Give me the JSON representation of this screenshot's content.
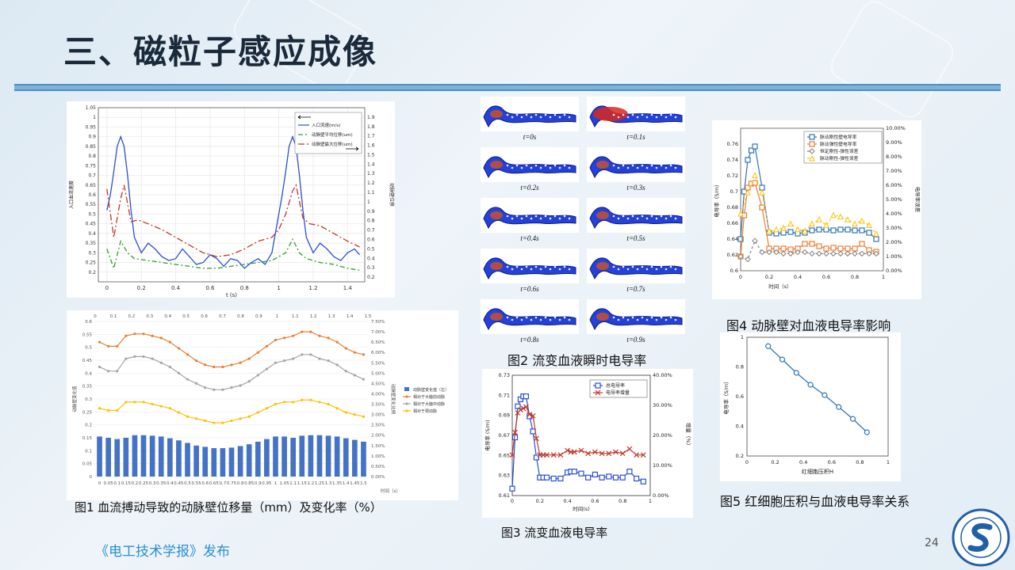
{
  "slide": {
    "title": "三、磁粒子感应成像",
    "source": "《电工技术学报》发布",
    "page_number": "24"
  },
  "figures": {
    "fig1_caption": "图1 血流搏动导致的动脉壁位移量（mm）及变化率（%）",
    "fig2_caption": "图2  流变血液瞬时电导率",
    "fig3_caption": "图3  流变血液电导率",
    "fig4_caption": "图4  动脉壁对血液电导率影响",
    "fig5_caption": "图5  红细胞压积与血液电导率关系",
    "fig2_time_labels": [
      "t=0s",
      "t=0.1s",
      "t=0.2s",
      "t=0.3s",
      "t=0.4s",
      "t=0.5s",
      "t=0.6s",
      "t=0.7s",
      "t=0.8s",
      "t=0.9s"
    ]
  },
  "colors": {
    "accent": "#2b8fcf",
    "rule": "#7fb2d8",
    "blue": "#2a4fd6",
    "red": "#c0392b",
    "green": "#2ca02c",
    "orange": "#ed7d31",
    "gray": "#a5a5a5",
    "yellow": "#ffc000",
    "bar": "#4472c4"
  },
  "chart_data": [
    {
      "id": "plot-a",
      "type": "line",
      "xlabel": "t (s)",
      "ylabel": "入口血流速度",
      "y2label": "动脉壁位移",
      "xlim": [
        -0.05,
        1.5
      ],
      "ylim": [
        0.15,
        1.05
      ],
      "y2lim": [
        0.15,
        2.0
      ],
      "xticks": [
        0,
        0.2,
        0.4,
        0.6,
        0.8,
        1,
        1.2,
        1.4
      ],
      "yticks": [
        0.2,
        0.25,
        0.3,
        0.35,
        0.4,
        0.45,
        0.5,
        0.55,
        0.6,
        0.65,
        0.7,
        0.75,
        0.8,
        0.85,
        0.9,
        0.95,
        1,
        1.05
      ],
      "y2ticks": [
        0.2,
        0.3,
        0.4,
        0.5,
        0.6,
        0.7,
        0.8,
        0.9,
        1,
        1.1,
        1.2,
        1.3,
        1.4,
        1.5,
        1.6,
        1.7,
        1.8,
        1.9
      ],
      "legend": "top-right",
      "series": [
        {
          "name": "入口流速(m/s)",
          "color": "#2a4fd6",
          "dash": "",
          "x": [
            0,
            0.02,
            0.04,
            0.06,
            0.08,
            0.1,
            0.12,
            0.14,
            0.16,
            0.2,
            0.24,
            0.28,
            0.32,
            0.36,
            0.4,
            0.44,
            0.48,
            0.52,
            0.56,
            0.6,
            0.64,
            0.68,
            0.72,
            0.76,
            0.8,
            0.84,
            0.88,
            0.92,
            0.96,
            1.0,
            1.02,
            1.04,
            1.06,
            1.08,
            1.1,
            1.12,
            1.14,
            1.16,
            1.2,
            1.24,
            1.28,
            1.32,
            1.36,
            1.4,
            1.44,
            1.47
          ],
          "y": [
            0.52,
            0.6,
            0.72,
            0.85,
            0.9,
            0.85,
            0.7,
            0.52,
            0.38,
            0.3,
            0.35,
            0.32,
            0.28,
            0.26,
            0.27,
            0.32,
            0.28,
            0.24,
            0.25,
            0.29,
            0.27,
            0.23,
            0.27,
            0.26,
            0.22,
            0.25,
            0.27,
            0.24,
            0.3,
            0.5,
            0.6,
            0.72,
            0.85,
            0.9,
            0.85,
            0.7,
            0.52,
            0.38,
            0.3,
            0.35,
            0.32,
            0.28,
            0.26,
            0.3,
            0.32,
            0.29
          ]
        },
        {
          "name": "动脉壁平均位移(um)",
          "color": "#2ca02c",
          "dash": "6,3,2,3",
          "x": [
            0,
            0.04,
            0.08,
            0.12,
            0.16,
            0.24,
            0.32,
            0.4,
            0.48,
            0.56,
            0.64,
            0.72,
            0.8,
            0.88,
            0.96,
            1.0,
            1.04,
            1.08,
            1.12,
            1.16,
            1.24,
            1.32,
            1.4,
            1.47
          ],
          "y": [
            0.32,
            0.22,
            0.36,
            0.3,
            0.27,
            0.26,
            0.25,
            0.24,
            0.23,
            0.22,
            0.22,
            0.23,
            0.24,
            0.25,
            0.26,
            0.28,
            0.3,
            0.37,
            0.3,
            0.27,
            0.25,
            0.24,
            0.22,
            0.21
          ]
        },
        {
          "name": "动脉壁最大位移(um)",
          "color": "#c0392b",
          "dash": "8,3,2,3",
          "x": [
            0,
            0.04,
            0.08,
            0.1,
            0.14,
            0.18,
            0.24,
            0.32,
            0.4,
            0.48,
            0.56,
            0.64,
            0.72,
            0.8,
            0.88,
            0.96,
            1.0,
            1.04,
            1.08,
            1.1,
            1.14,
            1.18,
            1.24,
            1.32,
            1.4,
            1.47
          ],
          "y": [
            0.63,
            0.38,
            0.58,
            0.65,
            0.46,
            0.47,
            0.45,
            0.42,
            0.38,
            0.34,
            0.3,
            0.28,
            0.29,
            0.32,
            0.36,
            0.38,
            0.42,
            0.5,
            0.62,
            0.65,
            0.48,
            0.45,
            0.44,
            0.4,
            0.36,
            0.33
          ]
        }
      ]
    },
    {
      "id": "plot-1",
      "type": "bar",
      "xlabel": "时间（s）",
      "ylabel": "动脉壁变化值",
      "y2label": "动脉壁变化比例",
      "categories": [
        "0",
        "0.05",
        "0.1",
        "0.15",
        "0.2",
        "0.25",
        "0.3",
        "0.35",
        "0.4",
        "0.45",
        "0.5",
        "0.55",
        "0.6",
        "0.65",
        "0.7",
        "0.75",
        "0.8",
        "0.85",
        "0.9",
        "0.95",
        "1",
        "1.05",
        "1.1",
        "1.15",
        "1.2",
        "1.25",
        "1.3",
        "1.35",
        "1.4",
        "1.45",
        "1.5"
      ],
      "top_ticks": [
        "0",
        "0.1",
        "0.2",
        "0.3",
        "0.4",
        "0.5",
        "0.6",
        "0.7",
        "0.8",
        "0.9",
        "1",
        "1.1",
        "1.2",
        "1.3",
        "1.4",
        "1.5"
      ],
      "ylim": [
        0,
        0.6
      ],
      "y2lim": [
        0,
        7.5
      ],
      "yticks": [
        0,
        0.05,
        0.1,
        0.15,
        0.2,
        0.25,
        0.3,
        0.35,
        0.4,
        0.45,
        0.5,
        0.55,
        0.6
      ],
      "y2ticks": [
        "0.00%",
        "0.50%",
        "1.00%",
        "1.50%",
        "2.00%",
        "2.50%",
        "3.00%",
        "3.50%",
        "4.00%",
        "4.50%",
        "5.00%",
        "5.50%",
        "6.00%",
        "6.50%",
        "7.00%",
        "7.50%"
      ],
      "legend": "right",
      "series": [
        {
          "name": "动脉壁变化值（左）",
          "kind": "bar",
          "color": "#4472c4",
          "values": [
            0.155,
            0.15,
            0.145,
            0.15,
            0.16,
            0.16,
            0.158,
            0.155,
            0.148,
            0.14,
            0.13,
            0.12,
            0.115,
            0.11,
            0.11,
            0.112,
            0.118,
            0.125,
            0.135,
            0.145,
            0.155,
            0.155,
            0.15,
            0.158,
            0.16,
            0.16,
            0.158,
            0.155,
            0.148,
            0.142,
            0.135
          ]
        },
        {
          "name": "相对于大脑前动脉",
          "kind": "line",
          "color": "#ed7d31",
          "values": [
            6.5,
            6.3,
            6.3,
            6.8,
            6.9,
            6.9,
            6.8,
            6.7,
            6.5,
            6.2,
            5.9,
            5.6,
            5.4,
            5.3,
            5.3,
            5.4,
            5.5,
            5.7,
            6.0,
            6.3,
            6.6,
            6.7,
            6.8,
            7.0,
            7.0,
            6.8,
            6.7,
            6.5,
            6.2,
            6.0,
            5.9
          ]
        },
        {
          "name": "相对于大脑中动脉",
          "kind": "line",
          "color": "#a5a5a5",
          "values": [
            5.3,
            5.1,
            5.1,
            5.7,
            5.8,
            5.8,
            5.7,
            5.5,
            5.3,
            5.0,
            4.7,
            4.5,
            4.3,
            4.2,
            4.2,
            4.3,
            4.4,
            4.6,
            4.9,
            5.2,
            5.5,
            5.6,
            5.7,
            5.9,
            5.9,
            5.7,
            5.6,
            5.4,
            5.1,
            4.9,
            4.7
          ]
        },
        {
          "name": "相对于颈动脉",
          "kind": "line",
          "color": "#ffc000",
          "values": [
            3.3,
            3.2,
            3.2,
            3.6,
            3.6,
            3.6,
            3.5,
            3.4,
            3.3,
            3.1,
            2.9,
            2.8,
            2.7,
            2.6,
            2.6,
            2.7,
            2.8,
            2.9,
            3.1,
            3.3,
            3.5,
            3.6,
            3.6,
            3.7,
            3.7,
            3.6,
            3.5,
            3.3,
            3.1,
            3.0,
            2.9
          ]
        }
      ]
    },
    {
      "id": "plot-3",
      "type": "line",
      "xlabel": "时间(s)",
      "ylabel": "电导率 (S/m)",
      "y2label": "增量（%）",
      "xlim": [
        0,
        1
      ],
      "ylim": [
        0.61,
        0.73
      ],
      "y2lim": [
        0,
        40
      ],
      "xticks": [
        0,
        0.2,
        0.4,
        0.6,
        0.8,
        1
      ],
      "yticks": [
        0.61,
        0.63,
        0.65,
        0.67,
        0.69,
        0.71,
        0.73
      ],
      "y2ticks": [
        "0.00%",
        "10.00%",
        "20.00%",
        "30.00%",
        "40.00%"
      ],
      "legend": "top-right",
      "series": [
        {
          "name": "总电导率",
          "color": "#2a4fd6",
          "marker": "square",
          "x": [
            0,
            0.02,
            0.04,
            0.06,
            0.08,
            0.1,
            0.125,
            0.15,
            0.175,
            0.2,
            0.225,
            0.25,
            0.3,
            0.35,
            0.4,
            0.425,
            0.45,
            0.5,
            0.55,
            0.6,
            0.65,
            0.7,
            0.75,
            0.8,
            0.85,
            0.9,
            0.95
          ],
          "y": [
            0.617,
            0.668,
            0.699,
            0.706,
            0.709,
            0.709,
            0.689,
            0.674,
            0.648,
            0.628,
            0.628,
            0.628,
            0.627,
            0.627,
            0.633,
            0.634,
            0.634,
            0.632,
            0.628,
            0.631,
            0.628,
            0.629,
            0.628,
            0.628,
            0.634,
            0.627,
            0.624
          ]
        },
        {
          "name": "电导率增量",
          "color": "#c0392b",
          "marker": "x",
          "x": [
            0,
            0.02,
            0.04,
            0.06,
            0.08,
            0.1,
            0.125,
            0.15,
            0.175,
            0.2,
            0.225,
            0.25,
            0.3,
            0.35,
            0.4,
            0.425,
            0.45,
            0.5,
            0.55,
            0.6,
            0.65,
            0.7,
            0.75,
            0.8,
            0.85,
            0.9,
            0.95
          ],
          "y2": [
            13.5,
            21.0,
            27.5,
            28.5,
            29.0,
            29.5,
            27.0,
            26.5,
            19.0,
            13.5,
            13.5,
            13.5,
            13.5,
            13.5,
            15.0,
            14.5,
            14.5,
            15.0,
            14.0,
            14.5,
            14.0,
            14.0,
            14.5,
            14.0,
            15.5,
            13.5,
            13.5
          ]
        }
      ]
    },
    {
      "id": "plot-4",
      "type": "line",
      "xlabel": "时间（s）",
      "ylabel": "电导率（S/m）",
      "y2label": "电导率误差",
      "xlim": [
        0,
        1
      ],
      "ylim": [
        0.6,
        0.78
      ],
      "y2lim": [
        0,
        10
      ],
      "xticks": [
        0,
        0.2,
        0.4,
        0.6,
        0.8,
        1
      ],
      "yticks": [
        0.6,
        0.62,
        0.64,
        0.66,
        0.68,
        0.7,
        0.72,
        0.74,
        0.76
      ],
      "y2ticks": [
        "0.00%",
        "1.00%",
        "2.00%",
        "3.00%",
        "4.00%",
        "5.00%",
        "6.00%",
        "7.00%",
        "8.00%",
        "9.00%",
        "10.00%"
      ],
      "legend": "top-right",
      "series": [
        {
          "name": "脉动刚性壁电导率",
          "color": "#2e75b6",
          "marker": "square",
          "x": [
            0,
            0.025,
            0.05,
            0.075,
            0.1,
            0.15,
            0.2,
            0.25,
            0.3,
            0.35,
            0.4,
            0.45,
            0.5,
            0.55,
            0.6,
            0.65,
            0.7,
            0.75,
            0.8,
            0.85,
            0.9,
            0.95
          ],
          "y": [
            0.64,
            0.7,
            0.74,
            0.752,
            0.757,
            0.705,
            0.648,
            0.647,
            0.648,
            0.649,
            0.647,
            0.648,
            0.651,
            0.652,
            0.652,
            0.651,
            0.652,
            0.652,
            0.651,
            0.651,
            0.648,
            0.64
          ]
        },
        {
          "name": "脉动弹性壁电导率",
          "color": "#ed7d31",
          "marker": "square",
          "x": [
            0,
            0.025,
            0.05,
            0.075,
            0.1,
            0.15,
            0.2,
            0.25,
            0.3,
            0.35,
            0.4,
            0.45,
            0.5,
            0.55,
            0.6,
            0.65,
            0.7,
            0.75,
            0.8,
            0.85,
            0.9,
            0.95
          ],
          "y": [
            0.618,
            0.67,
            0.705,
            0.71,
            0.711,
            0.68,
            0.628,
            0.628,
            0.628,
            0.627,
            0.628,
            0.634,
            0.634,
            0.631,
            0.628,
            0.629,
            0.628,
            0.628,
            0.628,
            0.634,
            0.626,
            0.624
          ]
        },
        {
          "name": "恒定刚性-弹性误差",
          "color": "#7f7f7f",
          "marker": "diamond",
          "dash": "3,3",
          "x": [
            0,
            0.05,
            0.1,
            0.15,
            0.2,
            0.25,
            0.3,
            0.35,
            0.4,
            0.45,
            0.5,
            0.55,
            0.6,
            0.65,
            0.7,
            0.75,
            0.8,
            0.85,
            0.9,
            0.95
          ],
          "y2": [
            1.0,
            0.8,
            2.1,
            1.3,
            1.3,
            1.3,
            1.2,
            1.2,
            1.3,
            1.3,
            1.2,
            1.2,
            1.2,
            1.2,
            1.2,
            1.2,
            1.2,
            1.2,
            1.2,
            1.2
          ]
        },
        {
          "name": "脉动刚性-弹性误差",
          "color": "#ffc000",
          "marker": "triangle",
          "dash": "3,3",
          "x": [
            0,
            0.05,
            0.1,
            0.15,
            0.2,
            0.25,
            0.3,
            0.35,
            0.4,
            0.45,
            0.5,
            0.55,
            0.6,
            0.65,
            0.7,
            0.75,
            0.8,
            0.85,
            0.9,
            0.95
          ],
          "y2": [
            4.0,
            5.5,
            6.7,
            5.5,
            2.8,
            2.9,
            3.0,
            3.3,
            2.9,
            2.8,
            3.3,
            3.6,
            3.2,
            3.9,
            3.8,
            3.6,
            3.3,
            3.5,
            3.2,
            2.6
          ]
        }
      ]
    },
    {
      "id": "plot-5",
      "type": "line",
      "xlabel": "红细胞压积H",
      "ylabel": "电导率（S/m）",
      "xlim": [
        0,
        1
      ],
      "ylim": [
        0.2,
        1.0
      ],
      "xticks": [
        0,
        0.2,
        0.4,
        0.6,
        0.8,
        1
      ],
      "yticks": [
        0.2,
        0.4,
        0.6,
        0.8,
        1
      ],
      "series": [
        {
          "name": "",
          "color": "#2e75b6",
          "marker": "circle",
          "x": [
            0.15,
            0.25,
            0.35,
            0.45,
            0.55,
            0.65,
            0.75,
            0.85
          ],
          "y": [
            0.94,
            0.85,
            0.76,
            0.68,
            0.61,
            0.53,
            0.45,
            0.36
          ]
        }
      ]
    }
  ]
}
